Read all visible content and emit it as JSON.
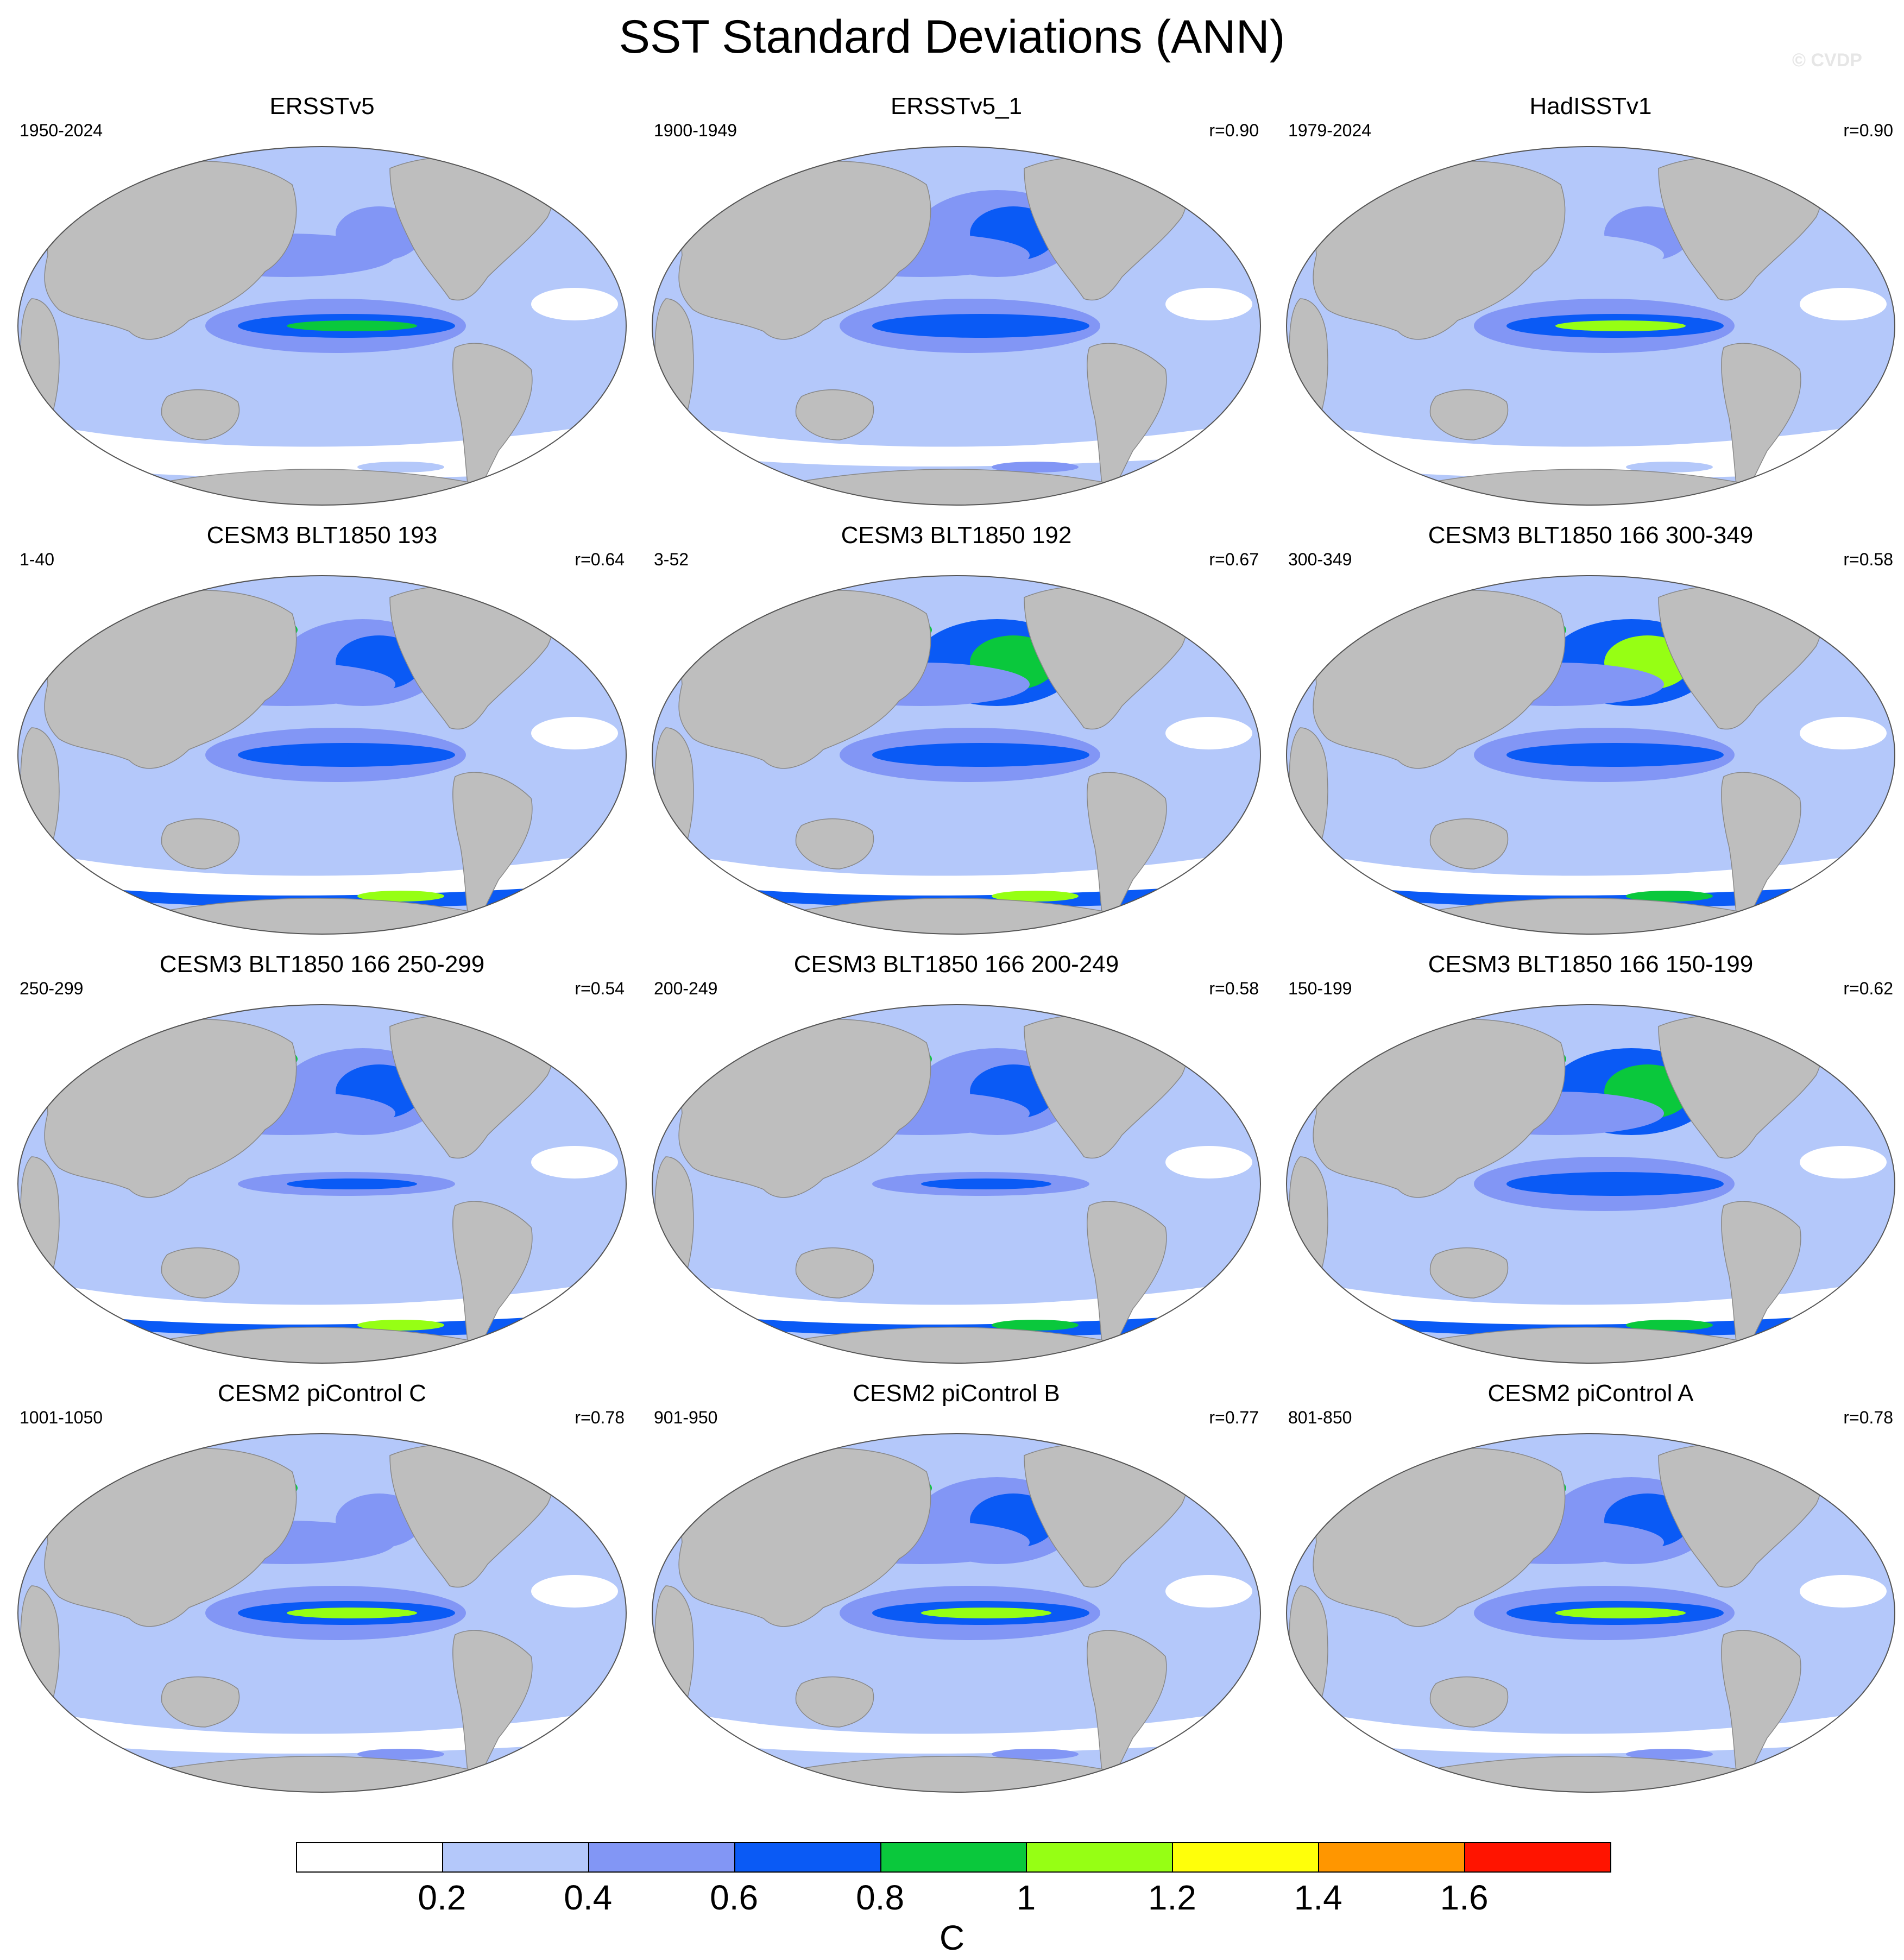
{
  "title": "SST Standard Deviations (ANN)",
  "watermark": "© CVDP",
  "palette": [
    "#ffffff",
    "#b4c8fa",
    "#8296f5",
    "#0a5af5",
    "#0ac83c",
    "#96ff14",
    "#ffff0a",
    "#ff9600",
    "#ff1400"
  ],
  "land_color": "#bebebe",
  "colorbar": {
    "ticks": [
      "0.2",
      "0.4",
      "0.6",
      "0.8",
      "1",
      "1.2",
      "1.4",
      "1.6"
    ],
    "unit": "C"
  },
  "panels": [
    {
      "title": "ERSSTv5",
      "left": "1950-2024",
      "right": "",
      "levels": {
        "np": 2,
        "nwp": 2,
        "eq": 3,
        "eqcore": 4,
        "so": 1,
        "kuro": 1,
        "natl": 2
      }
    },
    {
      "title": "ERSSTv5_1",
      "left": "1900-1949",
      "right": "r=0.90",
      "levels": {
        "np": 3,
        "nwp": 2,
        "eq": 3,
        "eqcore": 3,
        "so": 2,
        "kuro": 1,
        "natl": 2
      }
    },
    {
      "title": "HadISSTv1",
      "left": "1979-2024",
      "right": "r=0.90",
      "levels": {
        "np": 2,
        "nwp": 1,
        "eq": 3,
        "eqcore": 5,
        "so": 1,
        "kuro": 1,
        "natl": 2
      }
    },
    {
      "title": "CESM3 BLT1850 193",
      "left": "1-40",
      "right": "r=0.64",
      "levels": {
        "np": 3,
        "nwp": 2,
        "eq": 3,
        "eqcore": 3,
        "so": 5,
        "kuro": 5,
        "natl": 6
      }
    },
    {
      "title": "CESM3 BLT1850 192",
      "left": "3-52",
      "right": "r=0.67",
      "levels": {
        "np": 4,
        "nwp": 2,
        "eq": 3,
        "eqcore": 3,
        "so": 5,
        "kuro": 7,
        "natl": 6
      }
    },
    {
      "title": "CESM3 BLT1850 166 300-349",
      "left": "300-349",
      "right": "r=0.58",
      "levels": {
        "np": 5,
        "nwp": 2,
        "eq": 3,
        "eqcore": 3,
        "so": 4,
        "kuro": 8,
        "natl": 7
      }
    },
    {
      "title": "CESM3 BLT1850 166 250-299",
      "left": "250-299",
      "right": "r=0.54",
      "levels": {
        "np": 3,
        "nwp": 2,
        "eq": 2,
        "eqcore": 3,
        "so": 5,
        "kuro": 8,
        "natl": 8
      }
    },
    {
      "title": "CESM3 BLT1850 166 200-249",
      "left": "200-249",
      "right": "r=0.58",
      "levels": {
        "np": 3,
        "nwp": 2,
        "eq": 2,
        "eqcore": 3,
        "so": 4,
        "kuro": 7,
        "natl": 7
      }
    },
    {
      "title": "CESM3 BLT1850 166 150-199",
      "left": "150-199",
      "right": "r=0.62",
      "levels": {
        "np": 4,
        "nwp": 2,
        "eq": 3,
        "eqcore": 3,
        "so": 4,
        "kuro": 7,
        "natl": 7
      }
    },
    {
      "title": "CESM2 piControl C",
      "left": "1001-1050",
      "right": "r=0.78",
      "levels": {
        "np": 2,
        "nwp": 2,
        "eq": 3,
        "eqcore": 5,
        "so": 2,
        "kuro": 4,
        "natl": 5
      }
    },
    {
      "title": "CESM2 piControl B",
      "left": "901-950",
      "right": "r=0.77",
      "levels": {
        "np": 3,
        "nwp": 2,
        "eq": 3,
        "eqcore": 5,
        "so": 2,
        "kuro": 4,
        "natl": 5
      }
    },
    {
      "title": "CESM2 piControl A",
      "left": "801-850",
      "right": "r=0.78",
      "levels": {
        "np": 3,
        "nwp": 2,
        "eq": 3,
        "eqcore": 5,
        "so": 2,
        "kuro": 5,
        "natl": 5
      }
    }
  ]
}
